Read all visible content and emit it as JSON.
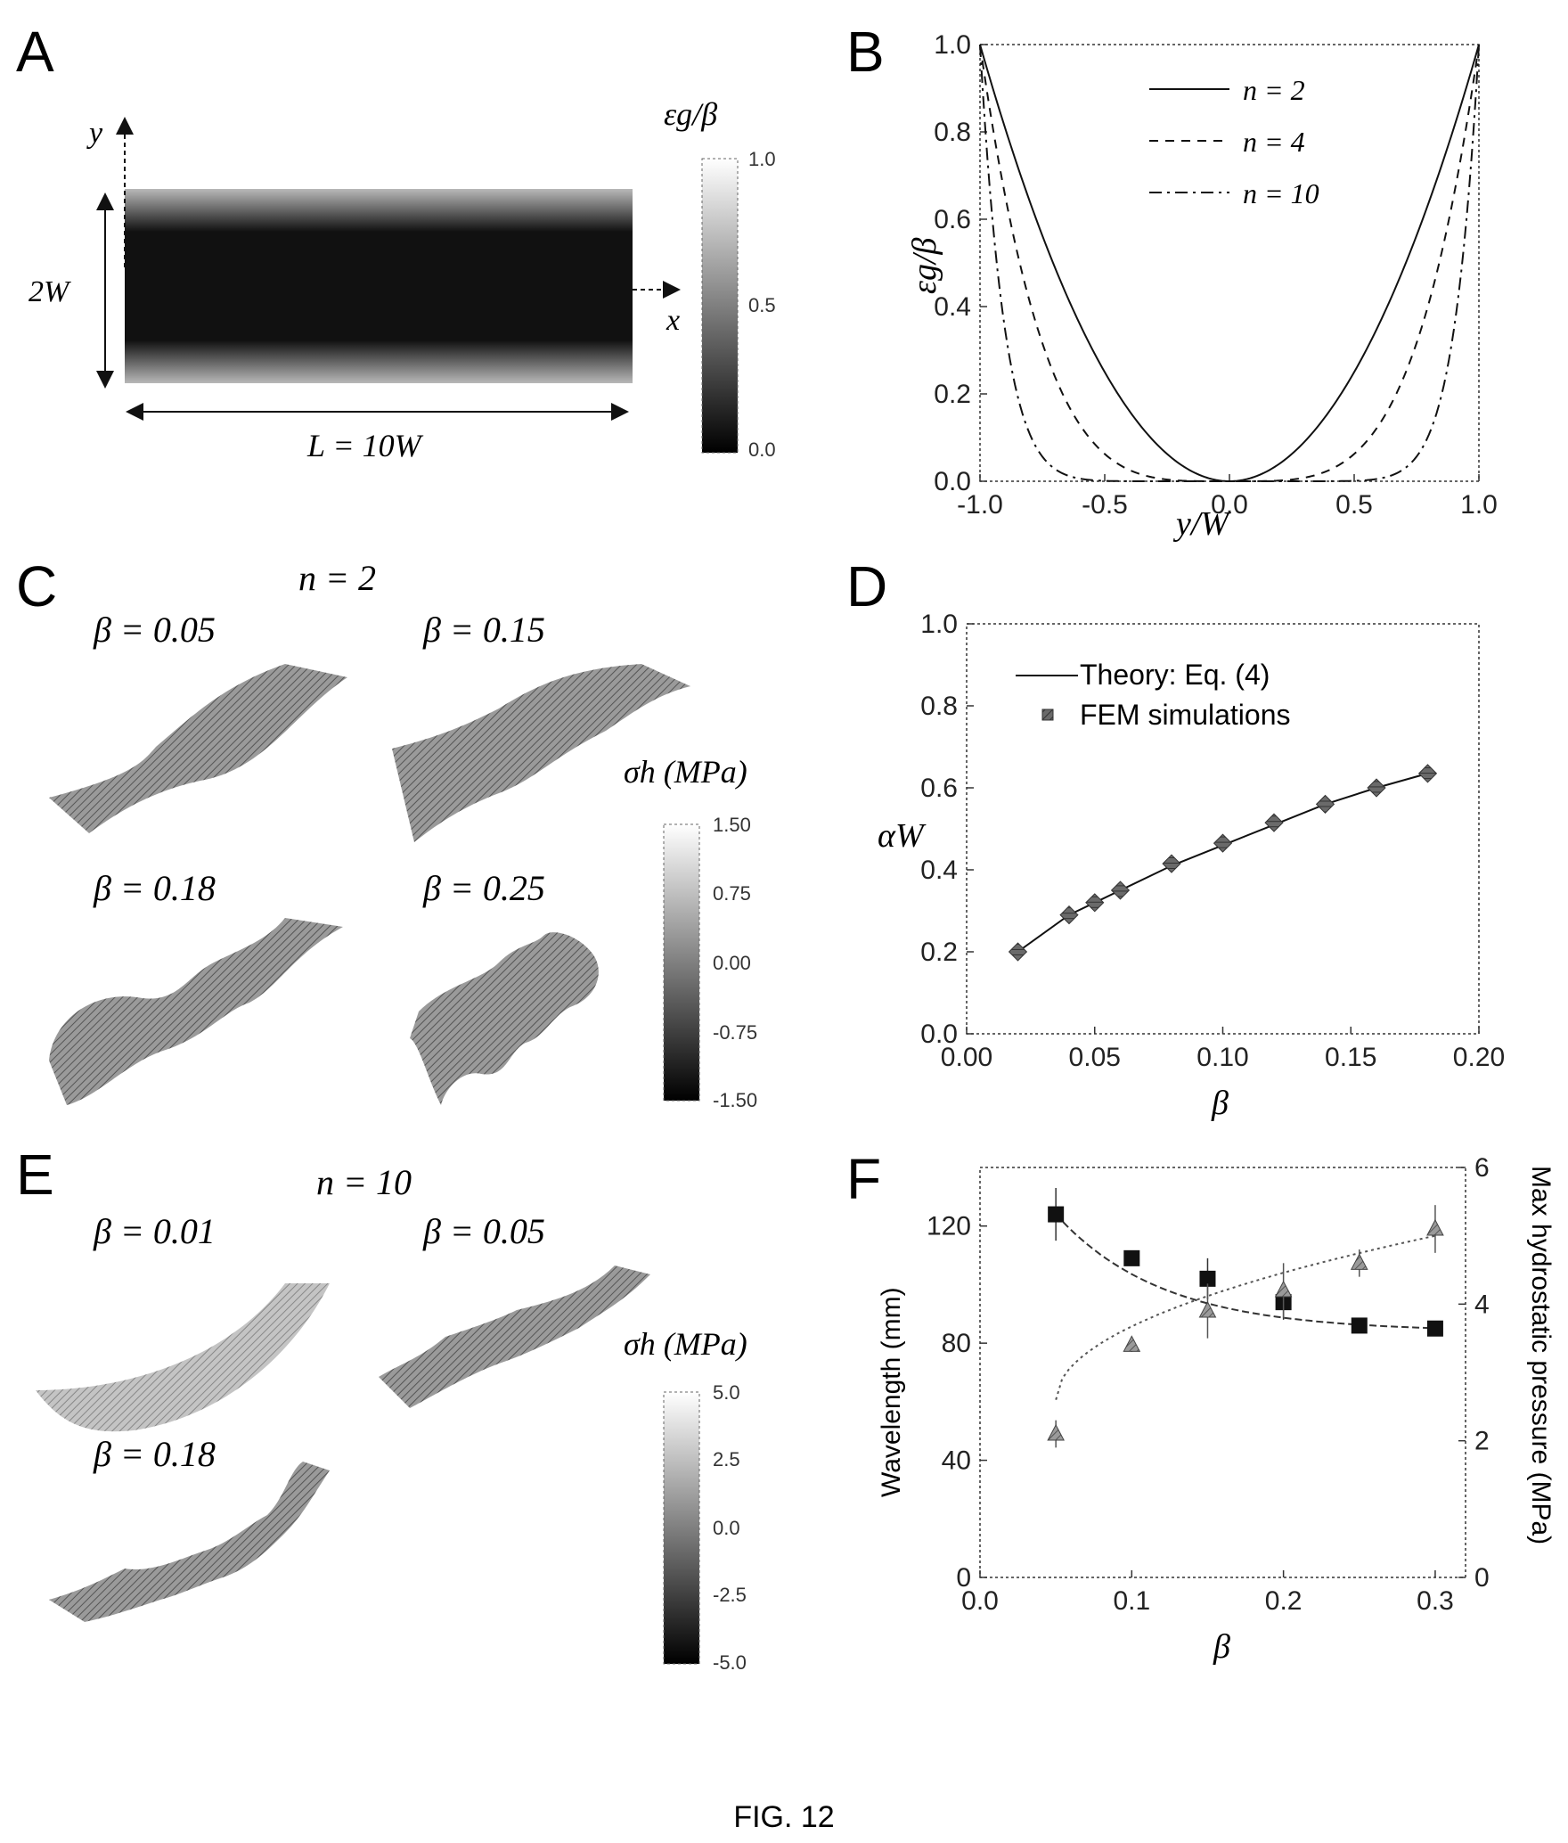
{
  "figure": {
    "caption": "FIG. 12"
  },
  "panel_a": {
    "label": "A",
    "y_axis": "y",
    "x_axis": "x",
    "width_label": "2W",
    "length_label": "L = 10W",
    "colorbar_title": "εg/β",
    "colorbar_ticks": [
      "1.0",
      "0.5",
      "0.0"
    ]
  },
  "panel_b": {
    "label": "B",
    "xlabel": "y/W",
    "ylabel": "εg/β",
    "xticks": [
      "-1.0",
      "-0.5",
      "0.0",
      "0.5",
      "1.0"
    ],
    "yticks": [
      "0.0",
      "0.2",
      "0.4",
      "0.6",
      "0.8",
      "1.0"
    ],
    "legend": [
      "n = 2",
      "n = 4",
      "n = 10"
    ]
  },
  "panel_c": {
    "label": "C",
    "header": "n = 2",
    "subplots": [
      "β = 0.05",
      "β = 0.15",
      "β = 0.18",
      "β = 0.25"
    ],
    "colorbar_title": "σh (MPa)",
    "colorbar_ticks": [
      "1.50",
      "0.75",
      "0.00",
      "-0.75",
      "-1.50"
    ]
  },
  "panel_d": {
    "label": "D",
    "xlabel": "β",
    "ylabel": "αW",
    "xticks": [
      "0.00",
      "0.05",
      "0.10",
      "0.15",
      "0.20"
    ],
    "yticks": [
      "0.0",
      "0.2",
      "0.4",
      "0.6",
      "0.8",
      "1.0"
    ],
    "legend": [
      "Theory: Eq. (4)",
      "FEM simulations"
    ]
  },
  "panel_e": {
    "label": "E",
    "header": "n = 10",
    "subplots": [
      "β = 0.01",
      "β = 0.05",
      "β = 0.18"
    ],
    "colorbar_title": "σh (MPa)",
    "colorbar_ticks": [
      "5.0",
      "2.5",
      "0.0",
      "-2.5",
      "-5.0"
    ]
  },
  "panel_f": {
    "label": "F",
    "xlabel": "β",
    "ylabel_left": "Wavelength (mm)",
    "ylabel_right": "Max hydrostatic pressure (MPa)",
    "xticks": [
      "0.0",
      "0.1",
      "0.2",
      "0.3"
    ],
    "yticks_left": [
      "0",
      "40",
      "80",
      "120"
    ],
    "yticks_right": [
      "0",
      "2",
      "4",
      "6"
    ]
  },
  "chart_data": [
    {
      "id": "B",
      "type": "line",
      "xlabel": "y/W",
      "ylabel": "εg/β",
      "xlim": [
        -1.0,
        1.0
      ],
      "ylim": [
        0.0,
        1.0
      ],
      "series": [
        {
          "name": "n = 2",
          "formula": "|y/W|^2",
          "style": "solid"
        },
        {
          "name": "n = 4",
          "formula": "|y/W|^4",
          "style": "dashed"
        },
        {
          "name": "n = 10",
          "formula": "|y/W|^10",
          "style": "dash-dot"
        }
      ],
      "legend_position": "top-center"
    },
    {
      "id": "D",
      "type": "line",
      "xlabel": "β",
      "ylabel": "αW",
      "xlim": [
        0.0,
        0.2
      ],
      "ylim": [
        0.0,
        1.0
      ],
      "series": [
        {
          "name": "Theory: Eq. (4)",
          "style": "line",
          "x": [
            0.02,
            0.04,
            0.05,
            0.06,
            0.08,
            0.1,
            0.12,
            0.14,
            0.16,
            0.18
          ],
          "y": [
            0.2,
            0.29,
            0.32,
            0.35,
            0.41,
            0.46,
            0.51,
            0.56,
            0.6,
            0.635
          ]
        },
        {
          "name": "FEM simulations",
          "style": "markers",
          "x": [
            0.02,
            0.04,
            0.05,
            0.06,
            0.08,
            0.1,
            0.12,
            0.14,
            0.16,
            0.18
          ],
          "y": [
            0.2,
            0.29,
            0.32,
            0.35,
            0.415,
            0.465,
            0.515,
            0.56,
            0.6,
            0.635
          ]
        }
      ],
      "legend_position": "top-left"
    },
    {
      "id": "F",
      "type": "scatter",
      "xlabel": "β",
      "ylabel_left": "Wavelength (mm)",
      "ylabel_right": "Max hydrostatic pressure (MPa)",
      "xlim": [
        0.0,
        0.32
      ],
      "ylim_left": [
        0,
        140
      ],
      "ylim_right": [
        0,
        6
      ],
      "series": [
        {
          "axis": "left",
          "marker": "square",
          "x": [
            0.05,
            0.1,
            0.15,
            0.2,
            0.25,
            0.3
          ],
          "y": [
            124,
            109,
            102,
            94,
            86,
            85
          ],
          "err": [
            9,
            2,
            7,
            6,
            1,
            1
          ]
        },
        {
          "axis": "right",
          "marker": "triangle",
          "x": [
            0.05,
            0.1,
            0.15,
            0.2,
            0.25,
            0.3
          ],
          "y": [
            2.1,
            3.4,
            3.9,
            4.2,
            4.6,
            5.1
          ],
          "err": [
            0.2,
            0.1,
            0.4,
            0.4,
            0.2,
            0.35
          ]
        }
      ]
    }
  ]
}
